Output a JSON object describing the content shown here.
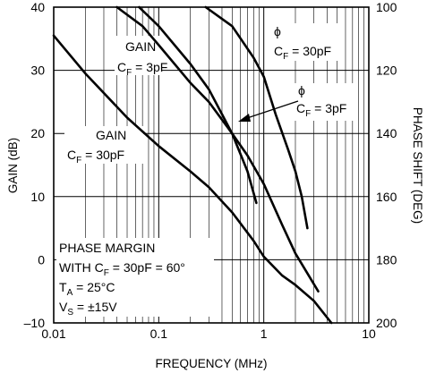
{
  "chart_data": {
    "type": "line",
    "title": "",
    "xlabel": "FREQUENCY (MHz)",
    "ylabel": "GAIN (dB)",
    "y2label": "PHASE SHIFT (DEG)",
    "xscale": "log",
    "xlim": [
      0.01,
      10
    ],
    "ylim": [
      -10,
      40
    ],
    "y2lim": [
      100,
      200
    ],
    "y2_inverted": true,
    "grid": true,
    "x_ticks": [
      {
        "v": 0.01,
        "label": "0.01"
      },
      {
        "v": 0.1,
        "label": "0.1"
      },
      {
        "v": 1,
        "label": "1"
      },
      {
        "v": 10,
        "label": "10"
      }
    ],
    "y_ticks": [
      {
        "v": 40,
        "label": "40"
      },
      {
        "v": 30,
        "label": "30"
      },
      {
        "v": 20,
        "label": "20"
      },
      {
        "v": 10,
        "label": "10"
      },
      {
        "v": 0,
        "label": "0"
      },
      {
        "v": -10,
        "label": "–10"
      }
    ],
    "y2_ticks": [
      {
        "v": 100,
        "label": "100"
      },
      {
        "v": 120,
        "label": "120"
      },
      {
        "v": 140,
        "label": "140"
      },
      {
        "v": 160,
        "label": "160"
      },
      {
        "v": 180,
        "label": "180"
      },
      {
        "v": 200,
        "label": "200"
      }
    ],
    "series": [
      {
        "axis": "left",
        "x": [
          0.01,
          0.02,
          0.05,
          0.1,
          0.2,
          0.3,
          0.5,
          0.8,
          1,
          1.5,
          2,
          3,
          4.4
        ],
        "y": [
          35.5,
          29.5,
          22.5,
          18,
          14,
          11.5,
          7.5,
          3,
          0.5,
          -2.5,
          -4,
          -6.5,
          -10
        ]
      },
      {
        "axis": "left",
        "x": [
          0.04,
          0.07,
          0.1,
          0.2,
          0.3,
          0.5,
          0.7,
          1,
          1.5,
          2,
          3.3
        ],
        "y": [
          40,
          37,
          34,
          28,
          25,
          20,
          16.5,
          12,
          5.5,
          1,
          -5
        ]
      },
      {
        "axis": "right",
        "x": [
          0.065,
          0.1,
          0.2,
          0.3,
          0.5,
          0.7,
          0.85
        ],
        "y": [
          100,
          106,
          118,
          126,
          140,
          152,
          162
        ]
      },
      {
        "axis": "right",
        "x": [
          0.28,
          0.5,
          0.8,
          1,
          1.3,
          1.7,
          2,
          2.3,
          2.6
        ],
        "y": [
          100,
          106,
          116,
          122,
          134,
          145,
          152,
          160,
          170
        ]
      }
    ],
    "annotations": {
      "gain_3pf": {
        "line1": "GAIN",
        "base": "C",
        "sub": "F",
        "eq": " = 3pF"
      },
      "gain_30pf": {
        "line1": "GAIN",
        "base": "C",
        "sub": "F",
        "eq": " = 30pF"
      },
      "phi_30pf": {
        "line1": "ϕ",
        "base": "C",
        "sub": "F",
        "eq": " = 30pF"
      },
      "phi_3pf": {
        "line1": "ϕ",
        "base": "C",
        "sub": "F",
        "eq": " = 3pF"
      },
      "conditions": {
        "l1": "PHASE MARGIN",
        "l2a": "WITH C",
        "l2sub": "F",
        "l2b": " = 30pF = 60°",
        "l3a": "T",
        "l3sub": "A",
        "l3b": " = 25°C",
        "l4a": "V",
        "l4sub": "S",
        "l4b": " = ±15V"
      }
    }
  }
}
